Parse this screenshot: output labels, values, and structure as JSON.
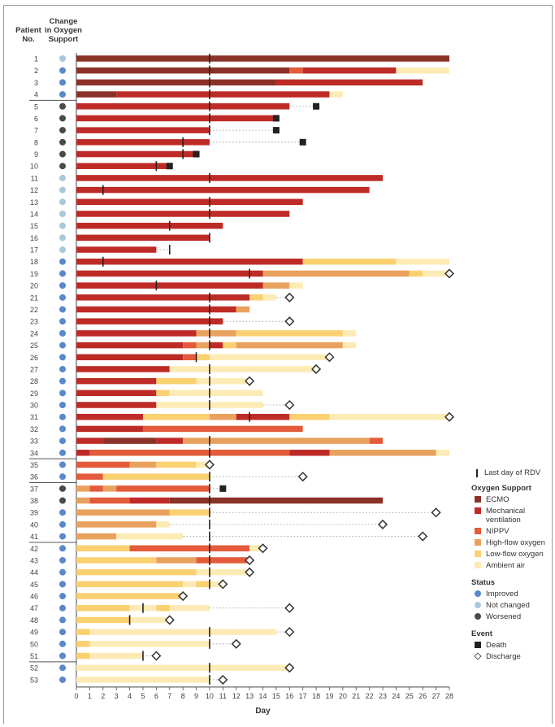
{
  "headers": {
    "patient_no": [
      "Patient",
      "No."
    ],
    "change": [
      "Change",
      "in Oxygen",
      "Support"
    ]
  },
  "chart_data": {
    "type": "gantt",
    "xlabel": "Day",
    "xlim": [
      0,
      28
    ],
    "xticks": [
      0,
      1,
      2,
      3,
      4,
      5,
      6,
      7,
      8,
      9,
      10,
      11,
      12,
      13,
      14,
      15,
      16,
      17,
      18,
      19,
      20,
      21,
      22,
      23,
      24,
      25,
      26,
      27,
      28
    ],
    "colors": {
      "ECMO": "#8B3228",
      "MV": "#BE2B27",
      "NIPPV": "#E35B3B",
      "HF": "#E9A15E",
      "LF": "#FAD071",
      "AA": "#FDEBB5"
    },
    "status_colors": {
      "improved": "#5B87CC",
      "not_changed": "#A9C8DA",
      "worsened": "#4A4A4A"
    },
    "group_breaks_after": [
      4,
      34,
      36,
      41,
      51
    ],
    "patients": [
      {
        "id": 1,
        "status": "not_changed",
        "segments": [
          [
            "ECMO",
            0,
            28
          ]
        ],
        "rdv": 10
      },
      {
        "id": 2,
        "status": "improved",
        "segments": [
          [
            "ECMO",
            0,
            16
          ],
          [
            "NIPPV",
            16,
            17
          ],
          [
            "MV",
            17,
            24
          ],
          [
            "AA",
            24,
            28
          ]
        ],
        "rdv": 10
      },
      {
        "id": 3,
        "status": "improved",
        "segments": [
          [
            "ECMO",
            0,
            15
          ],
          [
            "MV",
            15,
            26
          ]
        ],
        "rdv": 10
      },
      {
        "id": 4,
        "status": "improved",
        "segments": [
          [
            "ECMO",
            0,
            3
          ],
          [
            "MV",
            3,
            19
          ],
          [
            "AA",
            19,
            20
          ]
        ],
        "rdv": 10
      },
      {
        "id": 5,
        "status": "worsened",
        "segments": [
          [
            "MV",
            0,
            16
          ]
        ],
        "rdv": 10,
        "event": "death",
        "event_day": 18
      },
      {
        "id": 6,
        "status": "worsened",
        "segments": [
          [
            "MV",
            0,
            15
          ]
        ],
        "rdv": 10,
        "event": "death",
        "event_day": 15
      },
      {
        "id": 7,
        "status": "worsened",
        "segments": [
          [
            "MV",
            0,
            10
          ]
        ],
        "rdv": 10,
        "event": "death",
        "event_day": 15
      },
      {
        "id": 8,
        "status": "worsened",
        "segments": [
          [
            "MV",
            0,
            10
          ]
        ],
        "rdv": 8,
        "event": "death",
        "event_day": 17
      },
      {
        "id": 9,
        "status": "worsened",
        "segments": [
          [
            "MV",
            0,
            9
          ]
        ],
        "rdv": 8,
        "event": "death",
        "event_day": 9
      },
      {
        "id": 10,
        "status": "worsened",
        "segments": [
          [
            "MV",
            0,
            7
          ]
        ],
        "rdv": 6,
        "event": "death",
        "event_day": 7
      },
      {
        "id": 11,
        "status": "not_changed",
        "segments": [
          [
            "MV",
            0,
            23
          ]
        ],
        "rdv": 10
      },
      {
        "id": 12,
        "status": "not_changed",
        "segments": [
          [
            "MV",
            0,
            22
          ]
        ],
        "rdv": 2
      },
      {
        "id": 13,
        "status": "not_changed",
        "segments": [
          [
            "MV",
            0,
            17
          ]
        ],
        "rdv": 10
      },
      {
        "id": 14,
        "status": "not_changed",
        "segments": [
          [
            "MV",
            0,
            16
          ]
        ],
        "rdv": 10
      },
      {
        "id": 15,
        "status": "not_changed",
        "segments": [
          [
            "MV",
            0,
            11
          ]
        ],
        "rdv": 7
      },
      {
        "id": 16,
        "status": "not_changed",
        "segments": [
          [
            "MV",
            0,
            10
          ]
        ],
        "rdv": 10
      },
      {
        "id": 17,
        "status": "not_changed",
        "segments": [
          [
            "MV",
            0,
            6
          ]
        ],
        "rdv": 7
      },
      {
        "id": 18,
        "status": "improved",
        "segments": [
          [
            "MV",
            0,
            17
          ],
          [
            "LF",
            17,
            24
          ],
          [
            "AA",
            24,
            28
          ]
        ],
        "rdv": 2
      },
      {
        "id": 19,
        "status": "improved",
        "segments": [
          [
            "MV",
            0,
            14
          ],
          [
            "HF",
            14,
            25
          ],
          [
            "LF",
            25,
            26
          ],
          [
            "AA",
            26,
            28
          ]
        ],
        "rdv": 13,
        "event": "discharge",
        "event_day": 28
      },
      {
        "id": 20,
        "status": "improved",
        "segments": [
          [
            "MV",
            0,
            14
          ],
          [
            "HF",
            14,
            16
          ],
          [
            "AA",
            16,
            17
          ]
        ],
        "rdv": 6
      },
      {
        "id": 21,
        "status": "improved",
        "segments": [
          [
            "MV",
            0,
            13
          ],
          [
            "LF",
            13,
            14
          ],
          [
            "AA",
            14,
            15
          ]
        ],
        "rdv": 10,
        "event": "discharge",
        "event_day": 16
      },
      {
        "id": 22,
        "status": "improved",
        "segments": [
          [
            "MV",
            0,
            12
          ],
          [
            "HF",
            12,
            13
          ]
        ],
        "rdv": 10
      },
      {
        "id": 23,
        "status": "improved",
        "segments": [
          [
            "MV",
            0,
            11
          ]
        ],
        "rdv": 10,
        "event": "discharge",
        "event_day": 16
      },
      {
        "id": 24,
        "status": "improved",
        "segments": [
          [
            "MV",
            0,
            9
          ],
          [
            "HF",
            9,
            12
          ],
          [
            "LF",
            12,
            20
          ],
          [
            "AA",
            20,
            21
          ]
        ],
        "rdv": 10
      },
      {
        "id": 25,
        "status": "improved",
        "segments": [
          [
            "MV",
            0,
            8
          ],
          [
            "NIPPV",
            8,
            9
          ],
          [
            "HF",
            9,
            10
          ],
          [
            "MV",
            10,
            11
          ],
          [
            "LF",
            11,
            12
          ],
          [
            "HF",
            12,
            20
          ],
          [
            "AA",
            20,
            21
          ]
        ],
        "rdv": 10
      },
      {
        "id": 26,
        "status": "improved",
        "segments": [
          [
            "MV",
            0,
            8
          ],
          [
            "NIPPV",
            8,
            9
          ],
          [
            "LF",
            9,
            10
          ],
          [
            "AA",
            10,
            19
          ]
        ],
        "rdv": 9,
        "event": "discharge",
        "event_day": 19
      },
      {
        "id": 27,
        "status": "improved",
        "segments": [
          [
            "MV",
            0,
            7
          ],
          [
            "AA",
            7,
            18
          ]
        ],
        "rdv": 10,
        "event": "discharge",
        "event_day": 18
      },
      {
        "id": 28,
        "status": "improved",
        "segments": [
          [
            "MV",
            0,
            6
          ],
          [
            "LF",
            6,
            9
          ],
          [
            "AA",
            9,
            13
          ]
        ],
        "rdv": 10,
        "event": "discharge",
        "event_day": 13
      },
      {
        "id": 29,
        "status": "improved",
        "segments": [
          [
            "MV",
            0,
            6
          ],
          [
            "LF",
            6,
            7
          ],
          [
            "AA",
            7,
            14
          ]
        ],
        "rdv": 10
      },
      {
        "id": 30,
        "status": "improved",
        "segments": [
          [
            "MV",
            0,
            6
          ],
          [
            "AA",
            6,
            14
          ]
        ],
        "rdv": 10,
        "event": "discharge",
        "event_day": 16
      },
      {
        "id": 31,
        "status": "improved",
        "segments": [
          [
            "MV",
            0,
            5
          ],
          [
            "LF",
            5,
            10
          ],
          [
            "HF",
            10,
            12
          ],
          [
            "MV",
            12,
            16
          ],
          [
            "LF",
            16,
            19
          ],
          [
            "AA",
            19,
            28
          ]
        ],
        "rdv": 13,
        "event": "discharge",
        "event_day": 28
      },
      {
        "id": 32,
        "status": "improved",
        "segments": [
          [
            "MV",
            0,
            5
          ],
          [
            "NIPPV",
            5,
            17
          ]
        ]
      },
      {
        "id": 33,
        "status": "improved",
        "segments": [
          [
            "MV",
            0,
            2
          ],
          [
            "ECMO",
            2,
            6
          ],
          [
            "MV",
            6,
            8
          ],
          [
            "HF",
            8,
            22
          ],
          [
            "NIPPV",
            22,
            23
          ]
        ],
        "rdv": 10
      },
      {
        "id": 34,
        "status": "improved",
        "segments": [
          [
            "MV",
            0,
            1
          ],
          [
            "NIPPV",
            1,
            16
          ],
          [
            "MV",
            16,
            19
          ],
          [
            "HF",
            19,
            27
          ],
          [
            "AA",
            27,
            28
          ]
        ],
        "rdv": 10
      },
      {
        "id": 35,
        "status": "improved",
        "segments": [
          [
            "NIPPV",
            0,
            4
          ],
          [
            "HF",
            4,
            6
          ],
          [
            "LF",
            6,
            9
          ],
          [
            "AA",
            9,
            10
          ]
        ],
        "event": "discharge",
        "event_day": 10
      },
      {
        "id": 36,
        "status": "improved",
        "segments": [
          [
            "NIPPV",
            0,
            2
          ],
          [
            "LF",
            2,
            10
          ]
        ],
        "rdv": 10,
        "event": "discharge",
        "event_day": 17
      },
      {
        "id": 37,
        "status": "worsened",
        "segments": [
          [
            "HF",
            0,
            1
          ],
          [
            "NIPPV",
            1,
            2
          ],
          [
            "HF",
            2,
            3
          ],
          [
            "NIPPV",
            3,
            10
          ]
        ],
        "rdv": 10,
        "event": "death",
        "event_day": 11
      },
      {
        "id": 38,
        "status": "worsened",
        "segments": [
          [
            "HF",
            0,
            1
          ],
          [
            "NIPPV",
            1,
            4
          ],
          [
            "MV",
            4,
            7
          ],
          [
            "ECMO",
            7,
            23
          ]
        ],
        "rdv": 10
      },
      {
        "id": 39,
        "status": "improved",
        "segments": [
          [
            "HF",
            0,
            7
          ],
          [
            "LF",
            7,
            10
          ]
        ],
        "rdv": 10,
        "event": "discharge",
        "event_day": 27
      },
      {
        "id": 40,
        "status": "improved",
        "segments": [
          [
            "HF",
            0,
            6
          ],
          [
            "AA",
            6,
            7
          ]
        ],
        "rdv": 10,
        "event": "discharge",
        "event_day": 23
      },
      {
        "id": 41,
        "status": "improved",
        "segments": [
          [
            "HF",
            0,
            3
          ],
          [
            "AA",
            3,
            8
          ]
        ],
        "rdv": 10,
        "event": "discharge",
        "event_day": 26
      },
      {
        "id": 42,
        "status": "improved",
        "segments": [
          [
            "LF",
            0,
            4
          ],
          [
            "NIPPV",
            4,
            13
          ],
          [
            "AA",
            13,
            14
          ]
        ],
        "rdv": 10,
        "event": "discharge",
        "event_day": 14
      },
      {
        "id": 43,
        "status": "improved",
        "segments": [
          [
            "LF",
            0,
            6
          ],
          [
            "HF",
            6,
            9
          ],
          [
            "NIPPV",
            9,
            13
          ]
        ],
        "rdv": 10,
        "event": "discharge",
        "event_day": 13
      },
      {
        "id": 44,
        "status": "improved",
        "segments": [
          [
            "LF",
            0,
            9
          ],
          [
            "AA",
            9,
            13
          ]
        ],
        "rdv": 10,
        "event": "discharge",
        "event_day": 13
      },
      {
        "id": 45,
        "status": "improved",
        "segments": [
          [
            "LF",
            0,
            8
          ],
          [
            "AA",
            8,
            9
          ],
          [
            "LF",
            9,
            10
          ],
          [
            "AA",
            10,
            11
          ]
        ],
        "rdv": 10,
        "event": "discharge",
        "event_day": 11
      },
      {
        "id": 46,
        "status": "improved",
        "segments": [
          [
            "LF",
            0,
            8
          ]
        ],
        "event": "discharge",
        "event_day": 8
      },
      {
        "id": 47,
        "status": "improved",
        "segments": [
          [
            "LF",
            0,
            4
          ],
          [
            "AA",
            4,
            6
          ],
          [
            "LF",
            6,
            7
          ],
          [
            "AA",
            7,
            10
          ]
        ],
        "rdv": 5,
        "event": "discharge",
        "event_day": 16
      },
      {
        "id": 48,
        "status": "improved",
        "segments": [
          [
            "LF",
            0,
            4
          ],
          [
            "AA",
            4,
            7
          ]
        ],
        "rdv": 4,
        "event": "discharge",
        "event_day": 7
      },
      {
        "id": 49,
        "status": "improved",
        "segments": [
          [
            "LF",
            0,
            1
          ],
          [
            "AA",
            1,
            15
          ]
        ],
        "rdv": 10,
        "event": "discharge",
        "event_day": 16
      },
      {
        "id": 50,
        "status": "improved",
        "segments": [
          [
            "LF",
            0,
            1
          ],
          [
            "AA",
            1,
            10
          ]
        ],
        "rdv": 10,
        "event": "discharge",
        "event_day": 12
      },
      {
        "id": 51,
        "status": "improved",
        "segments": [
          [
            "LF",
            0,
            1
          ],
          [
            "AA",
            1,
            5
          ]
        ],
        "rdv": 5,
        "event": "discharge",
        "event_day": 6
      },
      {
        "id": 52,
        "status": "improved",
        "segments": [
          [
            "AA",
            0,
            16
          ]
        ],
        "rdv": 10,
        "event": "discharge",
        "event_day": 16
      },
      {
        "id": 53,
        "status": "improved",
        "segments": [
          [
            "AA",
            0,
            10
          ]
        ],
        "rdv": 10,
        "event": "discharge",
        "event_day": 11
      }
    ]
  },
  "legend": {
    "rdv_label": "Last day of RDV",
    "oxygen_title": "Oxygen Support",
    "oxygen_items": [
      {
        "key": "ECMO",
        "label": "ECMO"
      },
      {
        "key": "MV",
        "label": "Mechanical ventilation"
      },
      {
        "key": "NIPPV",
        "label": "NIPPV"
      },
      {
        "key": "HF",
        "label": "High-flow oxygen"
      },
      {
        "key": "LF",
        "label": "Low-flow oxygen"
      },
      {
        "key": "AA",
        "label": "Ambient air"
      }
    ],
    "status_title": "Status",
    "status_items": [
      {
        "key": "improved",
        "label": "Improved"
      },
      {
        "key": "not_changed",
        "label": "Not changed"
      },
      {
        "key": "worsened",
        "label": "Worsened"
      }
    ],
    "event_title": "Event",
    "event_items": [
      {
        "key": "death",
        "label": "Death"
      },
      {
        "key": "discharge",
        "label": "Discharge"
      }
    ]
  }
}
